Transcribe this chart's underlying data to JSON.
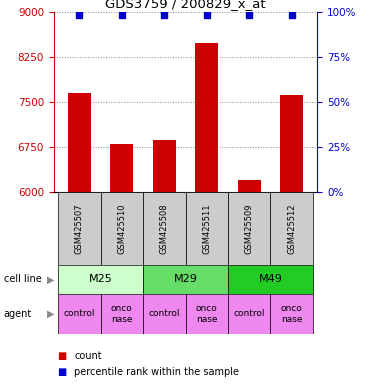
{
  "title": "GDS3759 / 200829_x_at",
  "samples": [
    "GSM425507",
    "GSM425510",
    "GSM425508",
    "GSM425511",
    "GSM425509",
    "GSM425512"
  ],
  "bar_values": [
    7650,
    6800,
    6870,
    8480,
    6200,
    7620
  ],
  "percentile_values": [
    98,
    98,
    98,
    98,
    98,
    98
  ],
  "ylim_left": [
    6000,
    9000
  ],
  "ylim_right": [
    0,
    100
  ],
  "yticks_left": [
    6000,
    6750,
    7500,
    8250,
    9000
  ],
  "yticks_right": [
    0,
    25,
    50,
    75,
    100
  ],
  "cell_lines": [
    {
      "label": "M25",
      "start": 0,
      "end": 2,
      "color": "#ccffcc"
    },
    {
      "label": "M29",
      "start": 2,
      "end": 4,
      "color": "#66dd66"
    },
    {
      "label": "M49",
      "start": 4,
      "end": 6,
      "color": "#22cc22"
    }
  ],
  "agents": [
    "control",
    "onconase",
    "control",
    "onconase",
    "control",
    "onconase"
  ],
  "agent_color": "#ee88ee",
  "sample_bg_color": "#cccccc",
  "bar_color": "#cc0000",
  "dot_color": "#0000cc",
  "grid_color": "#888888",
  "left_axis_color": "#cc0000",
  "right_axis_color": "#0000cc",
  "n": 6
}
